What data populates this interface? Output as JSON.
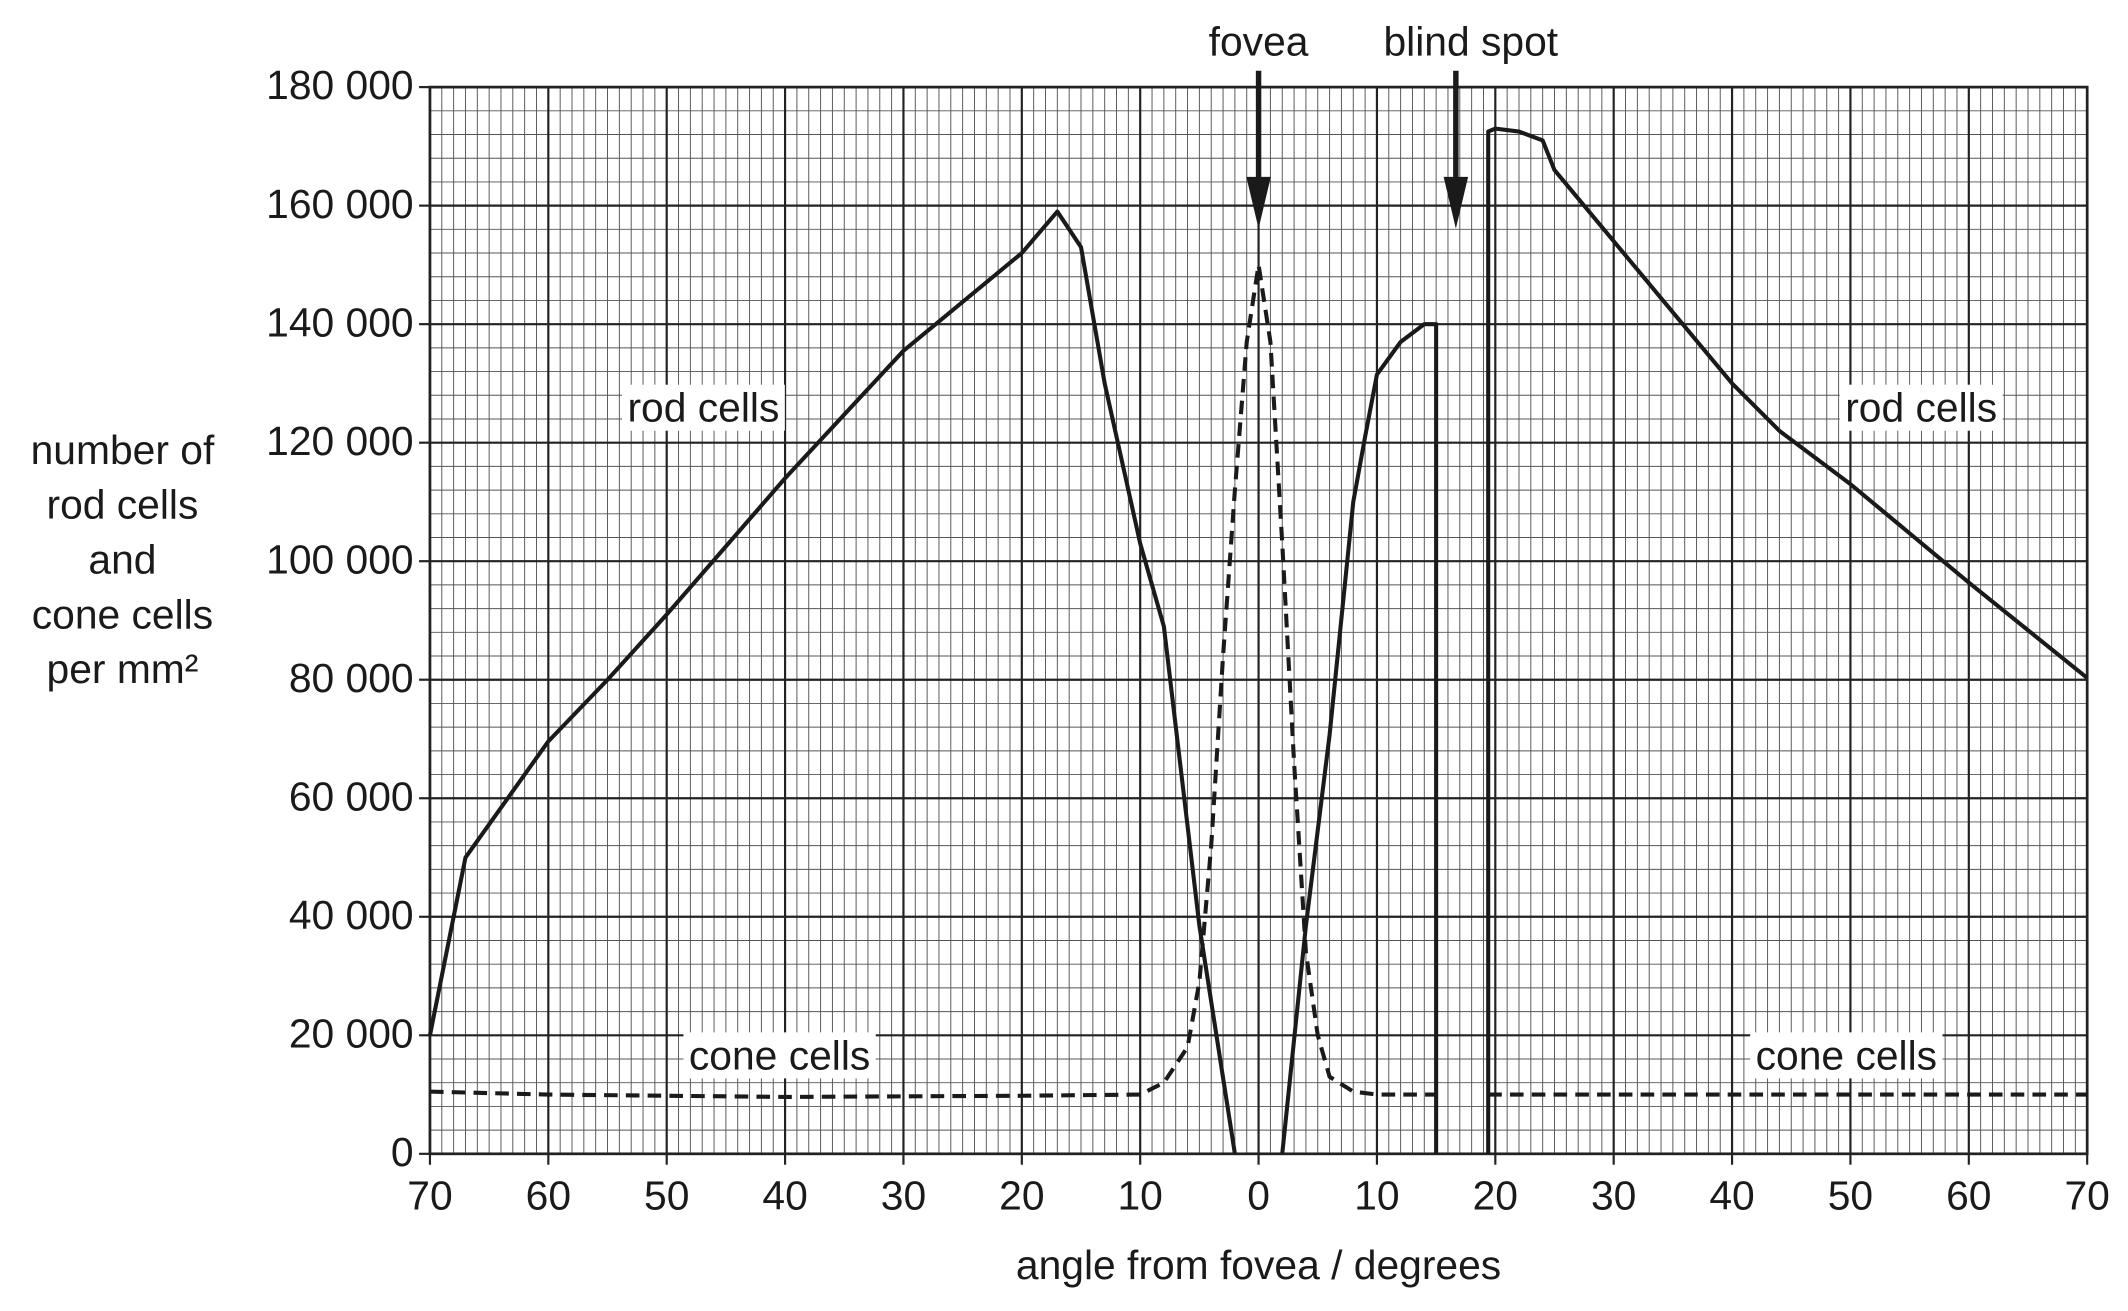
{
  "chart_data": {
    "type": "line",
    "x_label": "angle from fovea / degrees",
    "y_label_lines": [
      "number of",
      "rod cells",
      "and",
      "cone cells",
      "per mm²"
    ],
    "xlim": [
      -70,
      70
    ],
    "ylim": [
      0,
      180000
    ],
    "xticks": [
      {
        "value": -70,
        "label": "70"
      },
      {
        "value": -60,
        "label": "60"
      },
      {
        "value": -50,
        "label": "50"
      },
      {
        "value": -40,
        "label": "40"
      },
      {
        "value": -30,
        "label": "30"
      },
      {
        "value": -20,
        "label": "20"
      },
      {
        "value": -10,
        "label": "10"
      },
      0,
      10,
      20,
      30,
      40,
      50,
      60,
      70
    ],
    "yticks": [
      0,
      {
        "value": 20000,
        "label": "20 000"
      },
      {
        "value": 40000,
        "label": "40 000"
      },
      {
        "value": 60000,
        "label": "60 000"
      },
      {
        "value": 80000,
        "label": "80 000"
      },
      {
        "value": 100000,
        "label": "100 000"
      },
      {
        "value": 120000,
        "label": "120 000"
      },
      {
        "value": 140000,
        "label": "140 000"
      },
      {
        "value": 160000,
        "label": "160 000"
      },
      {
        "value": 180000,
        "label": "180 000"
      }
    ],
    "grid": true,
    "annotations": [
      "fovea",
      "blind spot",
      "rod cells",
      "rod cells",
      "cone cells",
      "cone cells"
    ],
    "series": [
      {
        "name": "rod cells",
        "color": "#1a1a1a",
        "dash": false,
        "x": [
          -70,
          -67,
          -60,
          -55,
          -50,
          -40,
          -30,
          -20,
          -17,
          -15,
          -13,
          -10,
          -8,
          -5,
          -2,
          null,
          2,
          4,
          6,
          8,
          9,
          10,
          12,
          14,
          15,
          15,
          null,
          19.4,
          19.4,
          20,
          22,
          24,
          25,
          30,
          40,
          44,
          50,
          60,
          70
        ],
        "values": [
          20000,
          50000,
          69600,
          80000,
          91000,
          114000,
          135500,
          152000,
          159000,
          153000,
          130000,
          103000,
          89000,
          38500,
          0,
          null,
          0,
          38500,
          70700,
          110000,
          121000,
          131500,
          137000,
          140000,
          140000,
          0,
          null,
          0,
          172500,
          173000,
          172500,
          171000,
          166000,
          154000,
          130000,
          122000,
          113000,
          96400,
          80300
        ]
      },
      {
        "name": "cone cells",
        "color": "#1a1a1a",
        "dash": true,
        "x": [
          -70,
          -60,
          -40,
          -20,
          -10,
          -8,
          -6,
          -5,
          -4,
          -3,
          -2,
          -1,
          0,
          1,
          2,
          3,
          4,
          5,
          6,
          8,
          10,
          15,
          null,
          19.4,
          70
        ],
        "values": [
          10500,
          10000,
          9600,
          9800,
          10000,
          12000,
          18000,
          29000,
          52000,
          84000,
          112000,
          137000,
          150000,
          137000,
          103000,
          66000,
          34000,
          20000,
          13000,
          10500,
          10000,
          10000,
          null,
          10000,
          10000
        ]
      }
    ]
  }
}
